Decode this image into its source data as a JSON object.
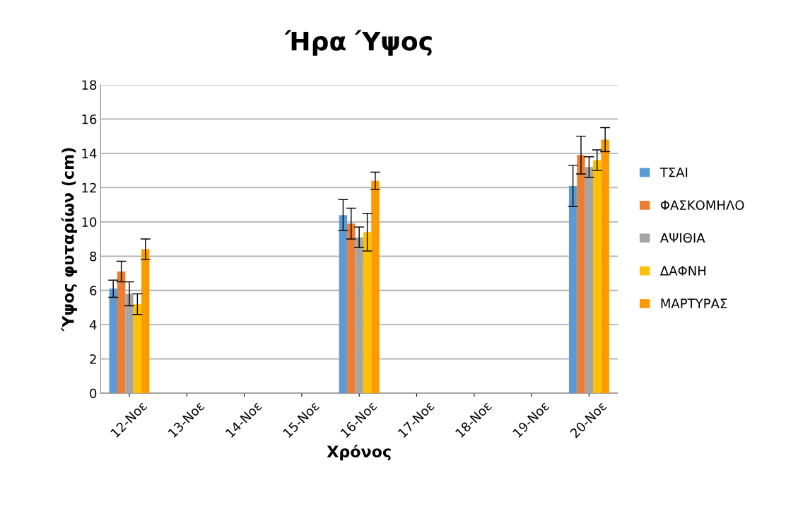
{
  "chart_data": {
    "type": "bar",
    "title": "Ήρα Ύψος",
    "xlabel": "Χρόνος",
    "ylabel": "Ύψος φυταρίων (cm)",
    "categories": [
      "12-Νοε",
      "13-Νοε",
      "14-Νοε",
      "15-Νοε",
      "16-Νοε",
      "17-Νοε",
      "18-Νοε",
      "19-Νοε",
      "20-Νοε"
    ],
    "series": [
      {
        "name": "ΤΣΑΙ",
        "color": "#5b9bd5",
        "values": [
          6.1,
          null,
          null,
          null,
          10.4,
          null,
          null,
          null,
          12.1
        ],
        "errors": [
          0.5,
          null,
          null,
          null,
          0.9,
          null,
          null,
          null,
          1.2
        ]
      },
      {
        "name": "ΦΑΣΚΟΜΗΛΟ",
        "color": "#ed7d31",
        "values": [
          7.1,
          null,
          null,
          null,
          9.9,
          null,
          null,
          null,
          13.9
        ],
        "errors": [
          0.6,
          null,
          null,
          null,
          0.9,
          null,
          null,
          null,
          1.1
        ]
      },
      {
        "name": "ΑΨΙΘΙΑ",
        "color": "#a5a5a5",
        "values": [
          5.8,
          null,
          null,
          null,
          9.1,
          null,
          null,
          null,
          13.2
        ],
        "errors": [
          0.7,
          null,
          null,
          null,
          0.6,
          null,
          null,
          null,
          0.6
        ]
      },
      {
        "name": "ΔΑΦΝΗ",
        "color": "#ffc000",
        "values": [
          5.2,
          null,
          null,
          null,
          9.4,
          null,
          null,
          null,
          13.6
        ],
        "errors": [
          0.6,
          null,
          null,
          null,
          1.1,
          null,
          null,
          null,
          0.6
        ]
      },
      {
        "name": "ΜΑΡΤΥΡΑΣ",
        "color": "#ff9900",
        "values": [
          8.4,
          null,
          null,
          null,
          12.4,
          null,
          null,
          null,
          14.8
        ],
        "errors": [
          0.6,
          null,
          null,
          null,
          0.5,
          null,
          null,
          null,
          0.7
        ]
      }
    ],
    "ylim": [
      0,
      18
    ],
    "yticks": [
      0,
      2,
      4,
      6,
      8,
      10,
      12,
      14,
      16,
      18
    ],
    "grid": "y",
    "legend": "right"
  }
}
